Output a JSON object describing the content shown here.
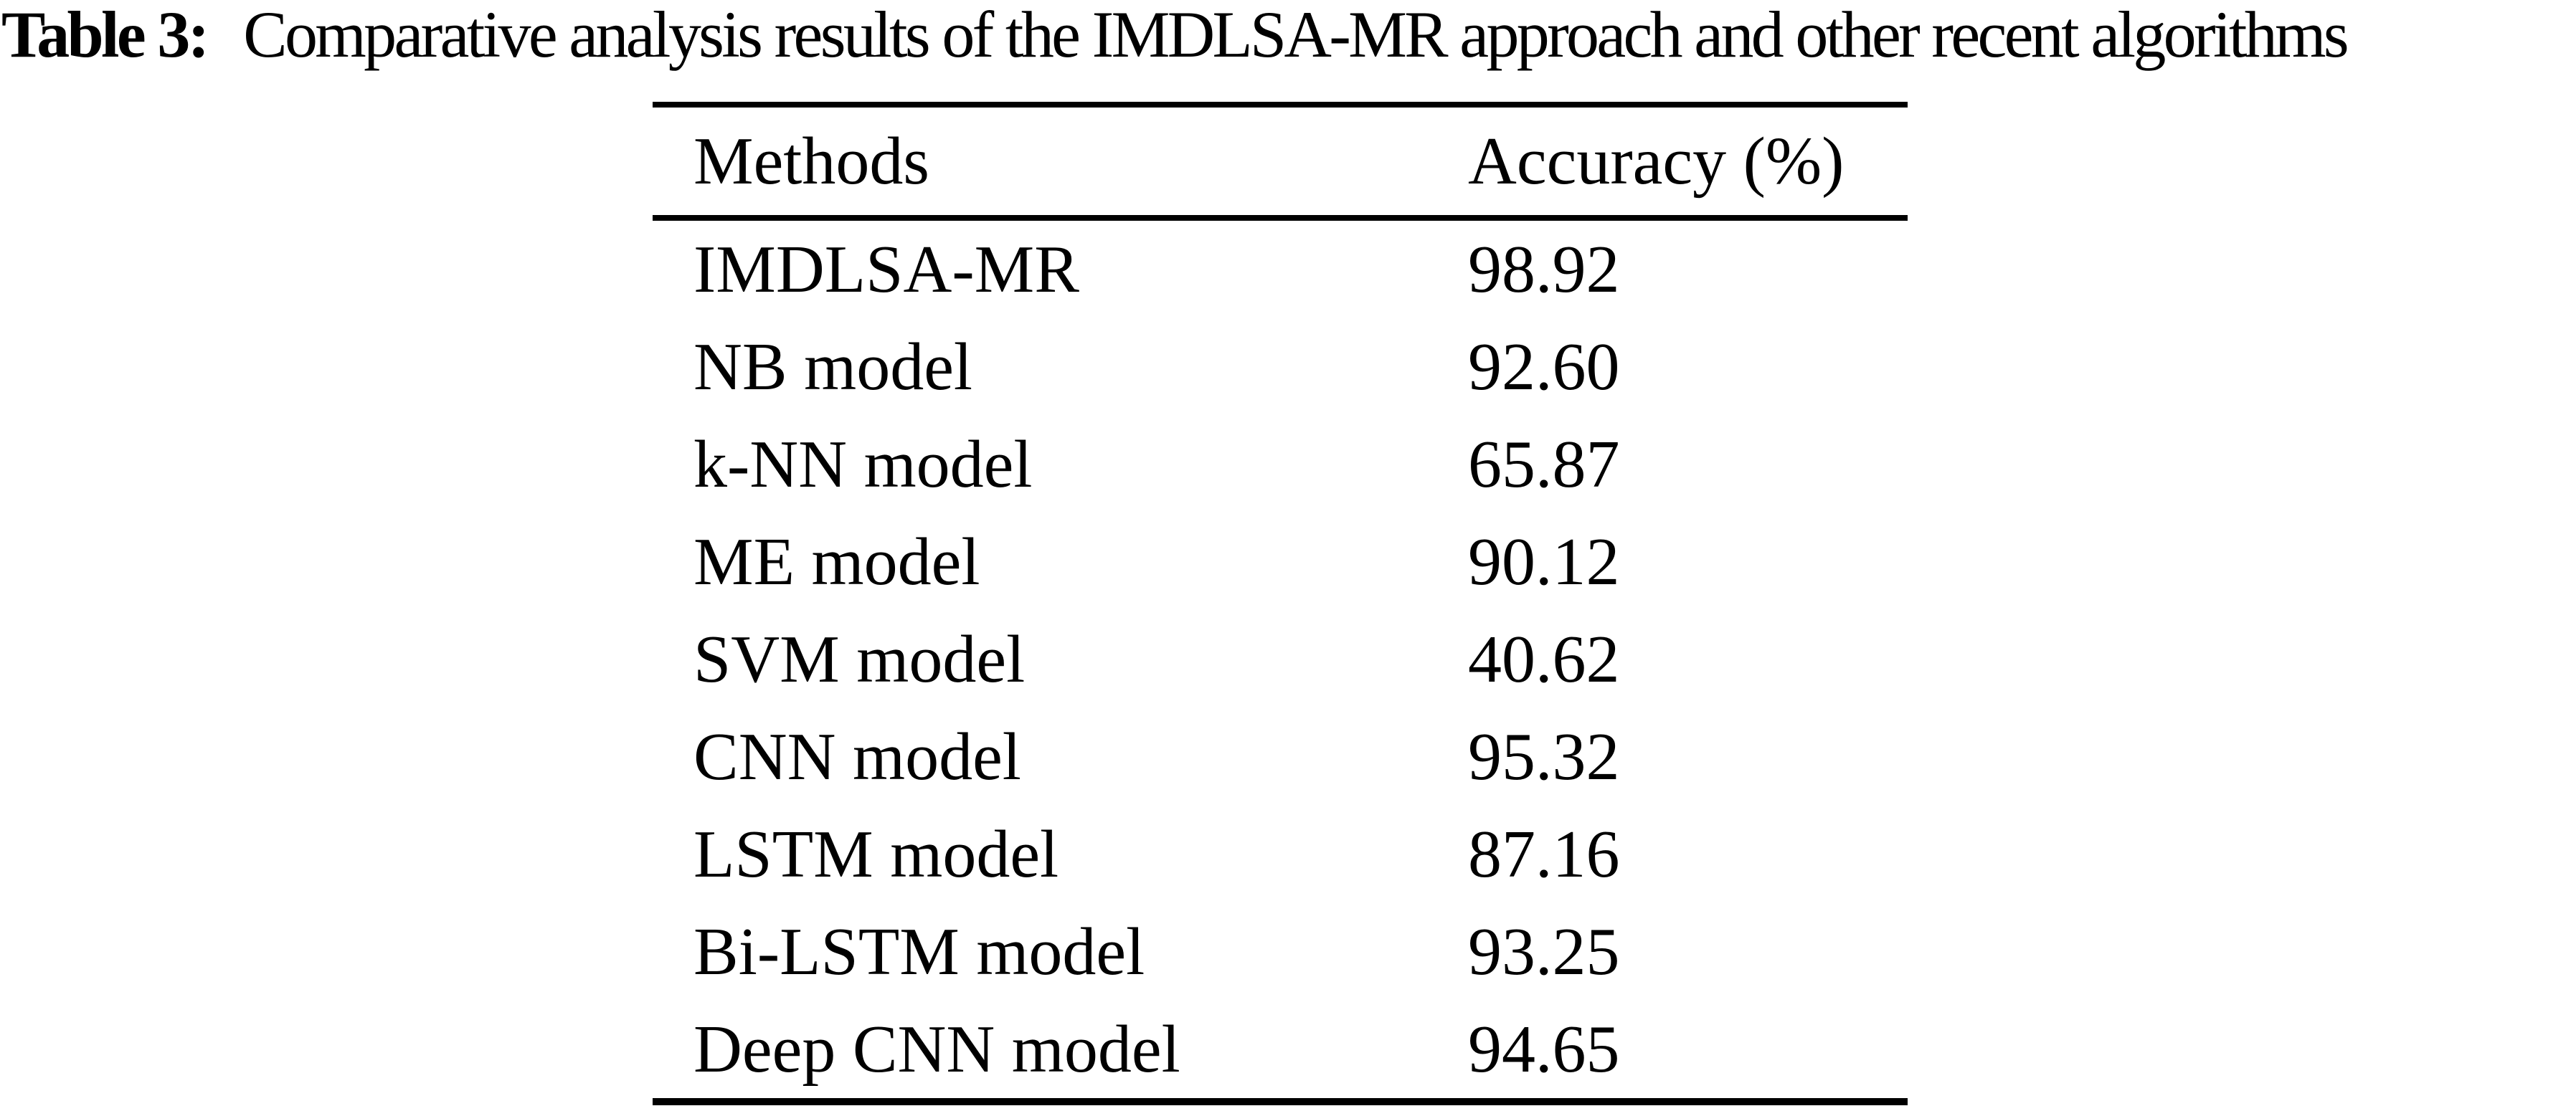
{
  "caption": {
    "label": "Table 3:",
    "text": "Comparative analysis results of the IMDLSA-MR approach and other recent algorithms"
  },
  "table": {
    "columns": [
      "Methods",
      "Accuracy (%)"
    ],
    "rows": [
      {
        "method": "IMDLSA-MR",
        "accuracy": "98.92"
      },
      {
        "method": "NB model",
        "accuracy": "92.60"
      },
      {
        "method": "k-NN model",
        "accuracy": "65.87"
      },
      {
        "method": "ME model",
        "accuracy": "90.12"
      },
      {
        "method": "SVM model",
        "accuracy": "40.62"
      },
      {
        "method": "CNN model",
        "accuracy": "95.32"
      },
      {
        "method": "LSTM model",
        "accuracy": "87.16"
      },
      {
        "method": "Bi-LSTM model",
        "accuracy": "93.25"
      },
      {
        "method": "Deep CNN model",
        "accuracy": "94.65"
      }
    ]
  },
  "chart_data": {
    "type": "table",
    "title": "Table 3: Comparative analysis results of the IMDLSA-MR approach and other recent algorithms",
    "columns": [
      "Methods",
      "Accuracy (%)"
    ],
    "rows": [
      [
        "IMDLSA-MR",
        98.92
      ],
      [
        "NB model",
        92.6
      ],
      [
        "k-NN model",
        65.87
      ],
      [
        "ME model",
        90.12
      ],
      [
        "SVM model",
        40.62
      ],
      [
        "CNN model",
        95.32
      ],
      [
        "LSTM model",
        87.16
      ],
      [
        "Bi-LSTM model",
        93.25
      ],
      [
        "Deep CNN model",
        94.65
      ]
    ]
  },
  "colors": {
    "text": "#000000",
    "background": "#ffffff",
    "rule": "#000000"
  }
}
